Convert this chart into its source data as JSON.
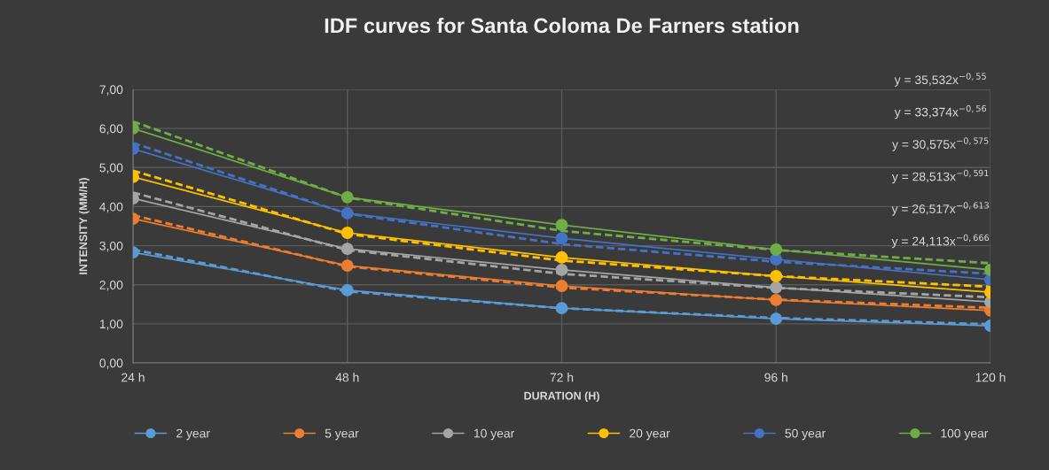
{
  "chart_data": {
    "type": "line",
    "title": "IDF curves for Santa Coloma De Farners station",
    "xlabel": "DURATION (H)",
    "ylabel": "INTENSITY (MM/H)",
    "categories": [
      "24 h",
      "48 h",
      "72 h",
      "96 h",
      "120 h"
    ],
    "ylim": [
      0,
      7
    ],
    "yticks": [
      {
        "value": 0,
        "label": "0,00"
      },
      {
        "value": 1,
        "label": "1,00"
      },
      {
        "value": 2,
        "label": "2,00"
      },
      {
        "value": 3,
        "label": "3,00"
      },
      {
        "value": 4,
        "label": "4,00"
      },
      {
        "value": 5,
        "label": "5,00"
      },
      {
        "value": 6,
        "label": "6,00"
      },
      {
        "value": 7,
        "label": "7,00"
      }
    ],
    "grid": true,
    "legend": "bottom",
    "marker": "circle",
    "line_style": "solid",
    "series": [
      {
        "name": "2 year",
        "color": "#5b9bd5",
        "values": [
          2.83,
          1.86,
          1.4,
          1.13,
          0.95
        ]
      },
      {
        "name": "5 year",
        "color": "#ed7d31",
        "values": [
          3.69,
          2.49,
          1.97,
          1.61,
          1.34
        ]
      },
      {
        "name": "10 year",
        "color": "#a5a5a5",
        "values": [
          4.21,
          2.92,
          2.38,
          1.93,
          1.56
        ]
      },
      {
        "name": "20 year",
        "color": "#ffc000",
        "values": [
          4.76,
          3.33,
          2.7,
          2.22,
          1.81
        ]
      },
      {
        "name": "50 year",
        "color": "#4472c4",
        "values": [
          5.48,
          3.83,
          3.19,
          2.65,
          2.13
        ]
      },
      {
        "name": "100 year",
        "color": "#70ad47",
        "values": [
          6.0,
          4.24,
          3.53,
          2.9,
          2.38
        ]
      },
      {
        "type": "line",
        "line_style": "dashed",
        "marker": "none",
        "color": "#5b9bd5",
        "values": [
          2.9,
          1.83,
          1.4,
          1.15,
          0.99
        ]
      },
      {
        "type": "line",
        "line_style": "dashed",
        "marker": "none",
        "color": "#ed7d31",
        "values": [
          3.78,
          2.47,
          1.93,
          1.62,
          1.41
        ]
      },
      {
        "type": "line",
        "line_style": "dashed",
        "marker": "none",
        "color": "#a5a5a5",
        "values": [
          4.36,
          2.89,
          2.28,
          1.92,
          1.68
        ]
      },
      {
        "type": "line",
        "line_style": "dashed",
        "marker": "none",
        "color": "#ffc000",
        "values": [
          4.92,
          3.3,
          2.62,
          2.22,
          1.95
        ]
      },
      {
        "type": "line",
        "line_style": "dashed",
        "marker": "none",
        "color": "#4472c4",
        "values": [
          5.63,
          3.82,
          3.04,
          2.59,
          2.28
        ]
      },
      {
        "type": "line",
        "line_style": "dashed",
        "marker": "none",
        "color": "#70ad47",
        "values": [
          6.18,
          4.23,
          3.38,
          2.89,
          2.55
        ]
      }
    ],
    "annotations": [
      "y = 35,532x$^{−0,55}$",
      "y = 33,374x$^{−0,56}$",
      "y = 30,575x$^{−0,575}$",
      "y = 28,513x$^{−0,591}$",
      "y = 26,517x$^{−0,613}$",
      "y = 24,113x$^{−0,666}$"
    ]
  }
}
